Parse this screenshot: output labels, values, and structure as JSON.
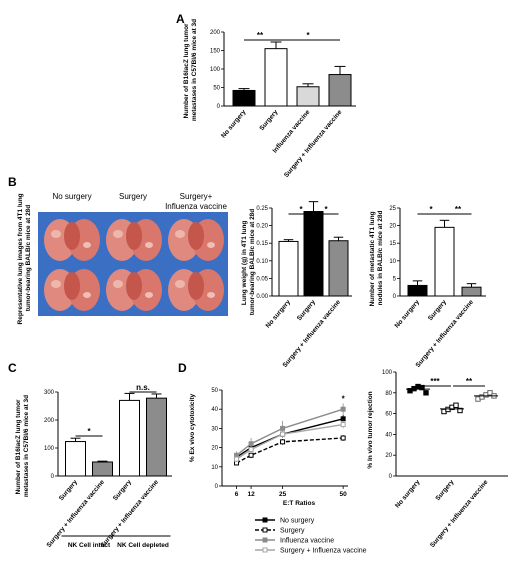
{
  "panels": {
    "A": {
      "letter": "A",
      "chart_data": {
        "type": "bar",
        "categories": [
          "No surgery",
          "Surgery",
          "Influenza vaccine",
          "Surgery + Influenza vaccine"
        ],
        "values": [
          42,
          155,
          52,
          85
        ],
        "errors": [
          5,
          18,
          8,
          22
        ],
        "colors": [
          "#000000",
          "#ffffff",
          "#d9d9d9",
          "#8c8c8c"
        ],
        "ylabel": "Number of B16lacZ lung tumor metastases in C57Bl/6 mice at 3d",
        "ylim": [
          0,
          200
        ],
        "yticks": [
          "0",
          "50",
          "100",
          "150",
          "200"
        ],
        "significance": [
          {
            "from": 0,
            "to": 1,
            "label": "**"
          },
          {
            "from": 1,
            "to": 3,
            "label": "*"
          }
        ]
      }
    },
    "B": {
      "letter": "B",
      "photo": {
        "labels": [
          "No surgery",
          "Surgery",
          "Surgery+",
          "Influenza vaccine"
        ],
        "ylabel_line1": "Representative lung images from 4T1 lung",
        "ylabel_line2": "tumor-bearing BALB/c mice at 28d"
      },
      "chart_weight": {
        "type": "bar",
        "categories": [
          "No surgery",
          "Surgery",
          "Surgery + Influenza vaccine"
        ],
        "values": [
          0.155,
          0.24,
          0.157
        ],
        "errors": [
          0.005,
          0.028,
          0.01
        ],
        "colors": [
          "#ffffff",
          "#000000",
          "#8c8c8c"
        ],
        "ylabel": "Lung weight (g) in 4T1 lung tumor-bearing BALB/c mice at 28d",
        "ylim": [
          0,
          0.25
        ],
        "yticks": [
          "0.00",
          "0.05",
          "0.10",
          "0.15",
          "0.20",
          "0.25"
        ],
        "significance": [
          {
            "from": 0,
            "to": 1,
            "label": "*"
          },
          {
            "from": 1,
            "to": 2,
            "label": "*"
          }
        ]
      },
      "chart_nodules": {
        "type": "bar",
        "categories": [
          "No surgery",
          "Surgery",
          "Surgery + Influenza vaccine"
        ],
        "values": [
          3,
          19.5,
          2.5
        ],
        "errors": [
          1.3,
          2,
          1
        ],
        "colors": [
          "#000000",
          "#ffffff",
          "#8c8c8c"
        ],
        "ylabel": "Number of metastatic 4T1 lung nodules in BALB/c mice at 28d",
        "ylim": [
          0,
          25
        ],
        "yticks": [
          "0",
          "5",
          "10",
          "15",
          "20",
          "25"
        ],
        "significance": [
          {
            "from": 0,
            "to": 1,
            "label": "*"
          },
          {
            "from": 1,
            "to": 2,
            "label": "**"
          }
        ]
      }
    },
    "C": {
      "letter": "C",
      "chart_data": {
        "type": "bar",
        "categories": [
          "Surgery",
          "Surgery + Influenza vaccine",
          "Surgery",
          "Surgery + Influenza vaccine"
        ],
        "values": [
          123,
          50,
          270,
          278
        ],
        "errors": [
          12,
          3,
          25,
          15
        ],
        "colors": [
          "#ffffff",
          "#8c8c8c",
          "#ffffff",
          "#8c8c8c"
        ],
        "ylabel": "Number of B16lacZ lung tumor metastases in C57Bl/6 mice at 3d",
        "ylim": [
          0,
          300
        ],
        "yticks": [
          "0",
          "100",
          "200",
          "300"
        ],
        "significance": [
          {
            "from": 0,
            "to": 1,
            "label": "*"
          },
          {
            "from": 2,
            "to": 3,
            "label": "n.s."
          }
        ],
        "groups": [
          {
            "label": "NK Cell intact",
            "from": 0,
            "to": 1
          },
          {
            "label": "NK Cell depleted",
            "from": 2,
            "to": 3
          }
        ]
      }
    },
    "D": {
      "letter": "D",
      "chart_line": {
        "type": "line",
        "x": [
          6,
          12,
          25,
          50
        ],
        "xticks": [
          "6",
          "12",
          "25",
          "50"
        ],
        "xlabel": "E:T Ratios",
        "ylabel": "% Ex vivo cytotoxicity",
        "ylim": [
          0,
          50
        ],
        "yticks": [
          "0",
          "10",
          "20",
          "30",
          "40",
          "50"
        ],
        "series": [
          {
            "name": "No surgery",
            "values": [
              15,
              20,
              27,
              35
            ],
            "errors": [
              1.5,
              1.5,
              2,
              2
            ],
            "color": "#000000",
            "dash": "",
            "marker": "filled"
          },
          {
            "name": "Surgery",
            "values": [
              12,
              16,
              23,
              25
            ],
            "errors": [
              1,
              1.5,
              1.5,
              1.5
            ],
            "color": "#000000",
            "dash": "4,2",
            "marker": "open"
          },
          {
            "name": "Influenza vaccine",
            "values": [
              16,
              22,
              30,
              40
            ],
            "errors": [
              2,
              3,
              4,
              3
            ],
            "color": "#8c8c8c",
            "dash": "",
            "marker": "filled"
          },
          {
            "name": "Surgery + Influenza vaccine",
            "values": [
              14,
              19,
              27,
              32
            ],
            "errors": [
              1.5,
              2,
              2,
              2
            ],
            "color": "#a6a6a6",
            "dash": "",
            "marker": "open"
          }
        ],
        "annotation": "*",
        "legend_position": "bottom"
      },
      "chart_scatter": {
        "type": "scatter",
        "categories": [
          "No surgery",
          "Surgery",
          "Surgery + Influenza vaccine"
        ],
        "points": [
          [
            82,
            84,
            86,
            85,
            80
          ],
          [
            62,
            64,
            66,
            68,
            63
          ],
          [
            74,
            76,
            78,
            80,
            77
          ]
        ],
        "means": [
          83.5,
          64.6,
          77
        ],
        "markers": [
          "filled-square",
          "open-square",
          "open-square-gray"
        ],
        "ylabel": "% In vivo tumor rejection",
        "ylim": [
          0,
          100
        ],
        "yticks": [
          "0",
          "20",
          "40",
          "60",
          "80",
          "100"
        ],
        "significance": [
          {
            "from": 0,
            "to": 1,
            "label": "***"
          },
          {
            "from": 1,
            "to": 2,
            "label": "**"
          }
        ]
      }
    }
  }
}
